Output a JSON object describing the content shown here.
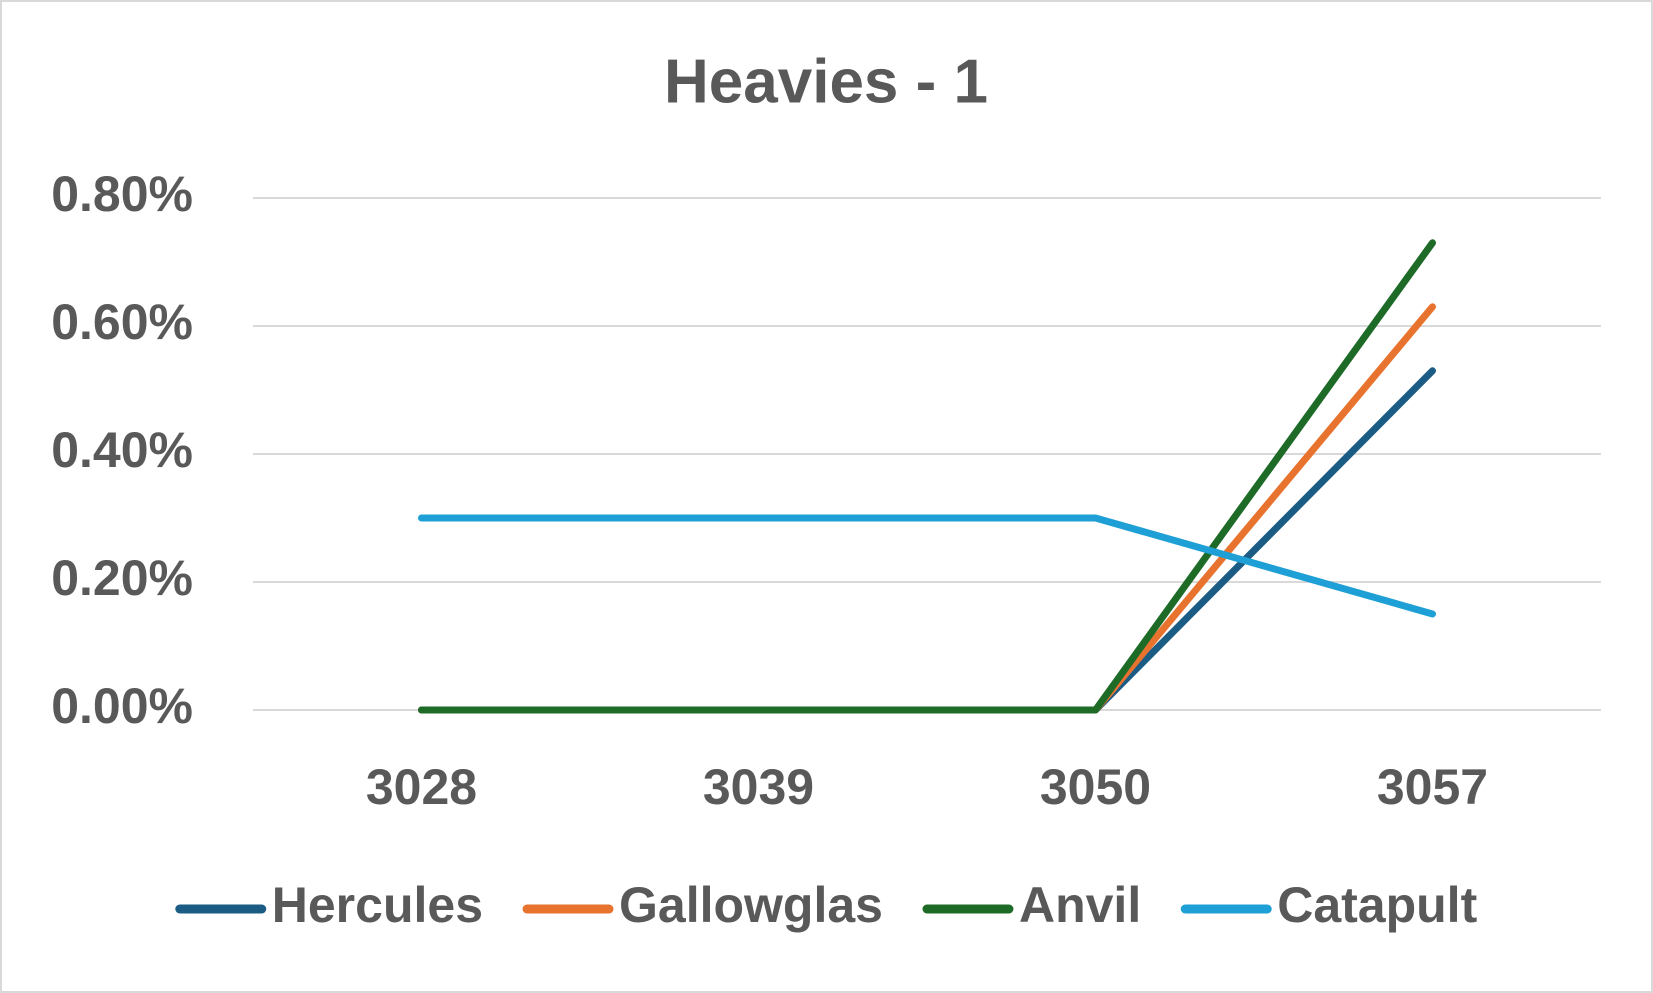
{
  "chart_data": {
    "type": "line",
    "title": "Heavies - 1",
    "categories": [
      "3028",
      "3039",
      "3050",
      "3057"
    ],
    "series": [
      {
        "name": "Hercules",
        "color": "#1b5c84",
        "values": [
          0,
          0,
          0,
          0.53
        ]
      },
      {
        "name": "Gallowglas",
        "color": "#e8732f",
        "values": [
          0,
          0,
          0,
          0.63
        ]
      },
      {
        "name": "Anvil",
        "color": "#1e6b28",
        "values": [
          0,
          0,
          0,
          0.73
        ]
      },
      {
        "name": "Catapult",
        "color": "#1e9fd6",
        "values": [
          0.3,
          0.3,
          0.3,
          0.15
        ]
      }
    ],
    "ylim": [
      0,
      0.8
    ],
    "yticks": [
      {
        "value": 0,
        "label": "0.00%"
      },
      {
        "value": 0.2,
        "label": "0.20%"
      },
      {
        "value": 0.4,
        "label": "0.40%"
      },
      {
        "value": 0.6,
        "label": "0.60%"
      },
      {
        "value": 0.8,
        "label": "0.80%"
      }
    ],
    "grid": true,
    "legend": "bottom"
  }
}
